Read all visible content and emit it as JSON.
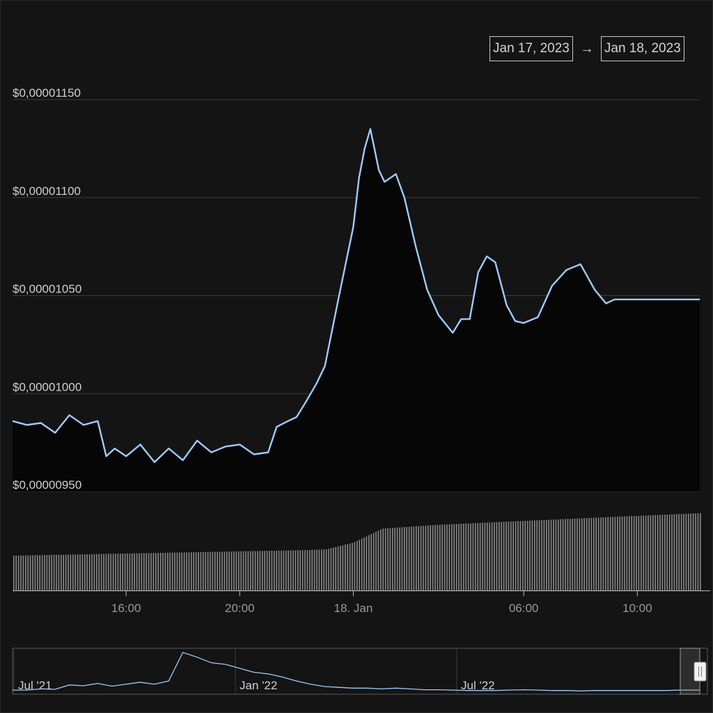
{
  "range_selector": {
    "from": "Jan 17, 2023",
    "arrow": "→",
    "to": "Jan 18, 2023"
  },
  "colors": {
    "background": "#141414",
    "line": "#9ecbff",
    "area": "#060606",
    "grid": "#3a3a3a",
    "volume": "#8a8a8a"
  },
  "chart_data": {
    "type": "line",
    "title": "",
    "xlabel": "",
    "ylabel": "",
    "y_ticks": [
      "$0,00001150",
      "$0,00001100",
      "$0,00001050",
      "$0,00001000",
      "$0,00000950"
    ],
    "x_ticks": [
      "16:00",
      "20:00",
      "18. Jan",
      "06:00",
      "10:00"
    ],
    "x_range_hours": [
      12.0,
      36.2
    ],
    "ylim": [
      9.5e-06,
      1.15e-05
    ],
    "price_series": {
      "name": "",
      "x_hours": [
        12.0,
        12.5,
        13.0,
        13.5,
        14.0,
        14.5,
        15.0,
        15.3,
        15.6,
        16.0,
        16.5,
        17.0,
        17.5,
        18.0,
        18.5,
        19.0,
        19.5,
        20.0,
        20.5,
        21.0,
        21.3,
        21.7,
        22.0,
        22.3,
        22.7,
        23.0,
        23.5,
        24.0,
        24.2,
        24.4,
        24.6,
        24.9,
        25.1,
        25.5,
        25.8,
        26.2,
        26.6,
        27.0,
        27.5,
        27.8,
        28.1,
        28.4,
        28.7,
        29.0,
        29.4,
        29.7,
        30.0,
        30.5,
        31.0,
        31.5,
        32.0,
        32.5,
        32.9,
        33.2,
        33.5,
        34.0,
        34.3,
        34.6,
        35.0,
        35.4,
        35.8,
        36.2
      ],
      "values": [
        9.86e-06,
        9.84e-06,
        9.85e-06,
        9.8e-06,
        9.89e-06,
        9.84e-06,
        9.86e-06,
        9.68e-06,
        9.72e-06,
        9.68e-06,
        9.74e-06,
        9.65e-06,
        9.72e-06,
        9.66e-06,
        9.76e-06,
        9.7e-06,
        9.73e-06,
        9.74e-06,
        9.69e-06,
        9.7e-06,
        9.83e-06,
        9.86e-06,
        9.88e-06,
        9.95e-06,
        1.005e-05,
        1.014e-05,
        1.05e-05,
        1.085e-05,
        1.11e-05,
        1.125e-05,
        1.135e-05,
        1.114e-05,
        1.108e-05,
        1.112e-05,
        1.1e-05,
        1.075e-05,
        1.053e-05,
        1.04e-05,
        1.031e-05,
        1.038e-05,
        1.038e-05,
        1.062e-05,
        1.07e-05,
        1.067e-05,
        1.045e-05,
        1.037e-05,
        1.036e-05,
        1.039e-05,
        1.055e-05,
        1.063e-05,
        1.066e-05,
        1.053e-05,
        1.046e-05,
        1.048e-05,
        1.048e-05,
        1.048e-05,
        1.048e-05,
        1.048e-05,
        1.048e-05,
        1.048e-05,
        1.048e-05,
        1.048e-05
      ]
    },
    "volume_series": {
      "name": "",
      "x_hours": [
        12.0,
        22.0,
        23.0,
        24.0,
        25.0,
        27.0,
        30.0,
        33.0,
        36.2
      ],
      "relative_level": [
        0.45,
        0.52,
        0.53,
        0.62,
        0.8,
        0.85,
        0.9,
        0.95,
        1.0
      ]
    },
    "navigator": {
      "type": "area",
      "labels": [
        "Jul '21",
        "Jan '22",
        "Jul '22"
      ],
      "values": [
        0.05,
        0.05,
        0.08,
        0.07,
        0.18,
        0.16,
        0.22,
        0.15,
        0.2,
        0.25,
        0.2,
        0.28,
        1.0,
        0.88,
        0.74,
        0.7,
        0.6,
        0.5,
        0.46,
        0.38,
        0.28,
        0.2,
        0.14,
        0.12,
        0.1,
        0.1,
        0.08,
        0.1,
        0.08,
        0.06,
        0.06,
        0.05,
        0.04,
        0.04,
        0.04,
        0.05,
        0.06,
        0.05,
        0.04,
        0.04,
        0.03,
        0.04,
        0.04,
        0.04,
        0.04,
        0.04,
        0.04,
        0.05
      ]
    }
  }
}
